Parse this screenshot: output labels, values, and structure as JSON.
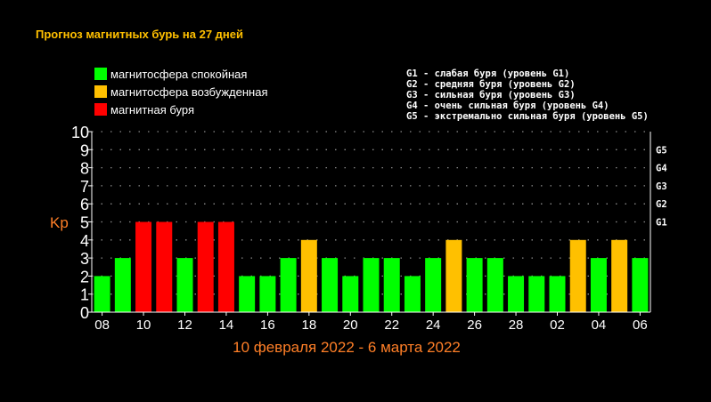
{
  "chart_data": {
    "type": "bar",
    "title": "Прогноз магнитных бурь на 27 дней",
    "subtitle": "10 февраля 2022 - 6 марта 2022",
    "ylabel": "Kp",
    "ylim": [
      0,
      10
    ],
    "yticks": [
      "0",
      "1",
      "2",
      "3",
      "4",
      "5",
      "6",
      "7",
      "8",
      "9",
      "10"
    ],
    "grid": true,
    "legend_placement": "top-left",
    "legend": [
      {
        "label": "магнитосфера спокойная",
        "color": "#00ff00"
      },
      {
        "label": "магнитосфера возбужденная",
        "color": "#ffc000"
      },
      {
        "label": "магнитная буря",
        "color": "#ff0000"
      }
    ],
    "g_scale": [
      {
        "level": "G1",
        "kp": 5,
        "description": "G1 - слабая буря (уровень G1)"
      },
      {
        "level": "G2",
        "kp": 6,
        "description": "G2 - средняя буря (уровень G2)"
      },
      {
        "level": "G3",
        "kp": 7,
        "description": "G3 - сильная буря (уровень G3)"
      },
      {
        "level": "G4",
        "kp": 8,
        "description": "G4 - очень сильная буря (уровень G4)"
      },
      {
        "level": "G5",
        "kp": 9,
        "description": "G5 - экстремально сильная буря (уровень G5)"
      }
    ],
    "x_tick_labels": [
      "08",
      "10",
      "12",
      "14",
      "16",
      "18",
      "20",
      "22",
      "24",
      "26",
      "28",
      "02",
      "04",
      "06"
    ],
    "values": [
      2,
      3,
      5,
      5,
      3,
      5,
      5,
      2,
      2,
      3,
      4,
      3,
      2,
      3,
      3,
      2,
      3,
      4,
      3,
      3,
      2,
      2,
      2,
      4,
      3,
      4,
      3
    ],
    "colors": {
      "calm": "#00ff00",
      "excited": "#ffc000",
      "storm": "#ff0000"
    }
  }
}
